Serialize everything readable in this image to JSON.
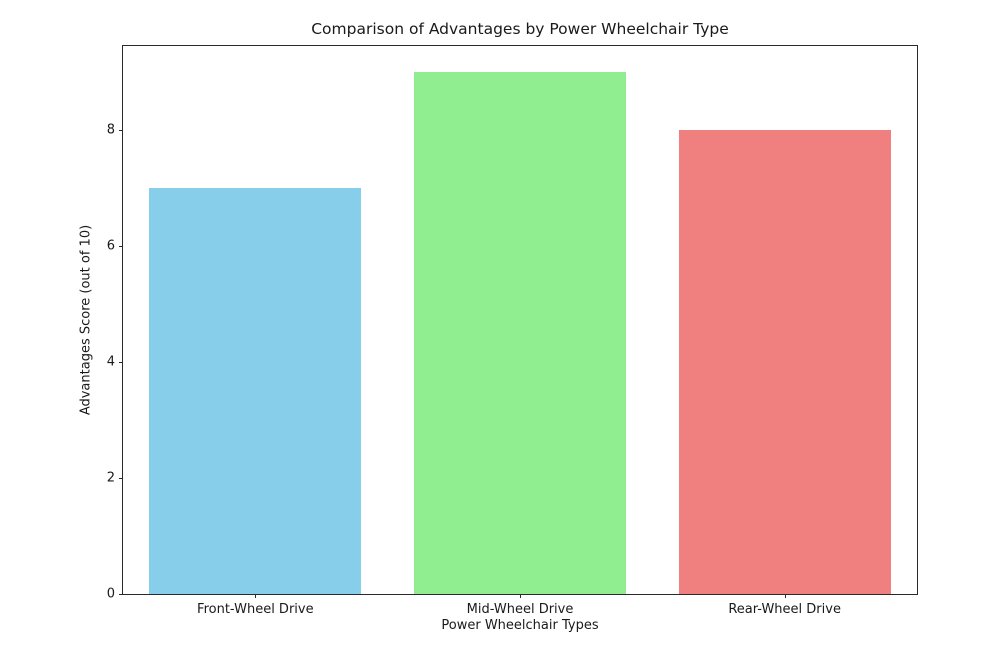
{
  "chart_data": {
    "type": "bar",
    "title": "Comparison of Advantages by Power Wheelchair Type",
    "xlabel": "Power Wheelchair Types",
    "ylabel": "Advantages Score (out of 10)",
    "categories": [
      "Front-Wheel Drive",
      "Mid-Wheel Drive",
      "Rear-Wheel Drive"
    ],
    "values": [
      7,
      9,
      8
    ],
    "bar_colors": [
      "#87CEEB",
      "#90EE90",
      "#F08080"
    ],
    "yticks": [
      0,
      2,
      4,
      6,
      8
    ],
    "ylim": [
      0,
      9.45
    ],
    "bar_width_units": 0.8,
    "grid": "off",
    "legend": "none",
    "background_color": "#ffffff",
    "spine_color": "#2a2a2a"
  }
}
